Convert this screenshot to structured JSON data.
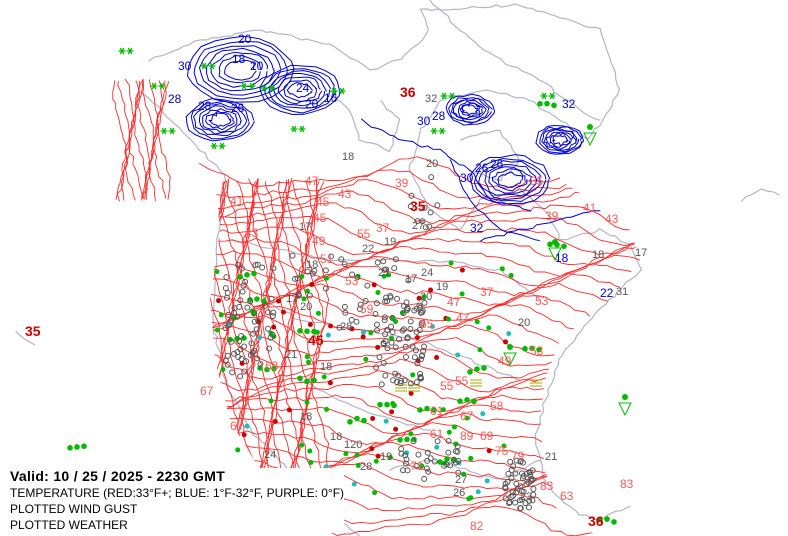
{
  "legend": {
    "valid": "Valid: 10 / 25 / 2025  -  2230 GMT",
    "temperature": "TEMPERATURE (RED:33°F+; BLUE: 1°F-32°F, PURPLE: 0°F)",
    "wind_gust": "PLOTTED WIND GUST",
    "weather": "PLOTTED WEATHER"
  },
  "colors": {
    "warm_contour": "#ff2a2a",
    "warm_label": "#ff5a5a",
    "cold_contour": "#0000cc",
    "freezing": "#9900cc",
    "coastline": "#b4b4c8",
    "station": "#555555",
    "rain": "#00bb00",
    "snow": "#00bb00",
    "gust": "#cc0000",
    "fog": "#aaaa00",
    "drizzle": "#22bbbb"
  },
  "warm_labels": [
    "41",
    "43",
    "45",
    "47",
    "49",
    "51",
    "53",
    "55",
    "59",
    "61",
    "63",
    "67",
    "69",
    "75",
    "79",
    "83",
    "83",
    "37",
    "39",
    "39",
    "41",
    "43",
    "47",
    "49",
    "53",
    "55",
    "58",
    "67",
    "65",
    "61",
    "47",
    "37",
    "35",
    "43",
    "45",
    "53",
    "55",
    "63",
    "67",
    "71",
    "89",
    "82"
  ],
  "cold_labels": [
    "20",
    "20",
    "18",
    "30",
    "28",
    "26",
    "24",
    "20",
    "16",
    "30",
    "28",
    "26",
    "32",
    "32",
    "30",
    "26",
    "28",
    "18",
    "22"
  ],
  "station_values": [
    "18",
    "32",
    "20",
    "27",
    "19",
    "17",
    "18",
    "20",
    "21",
    "18",
    "17",
    "24",
    "18",
    "27",
    "22",
    "26",
    "20",
    "17",
    "18",
    "24",
    "19",
    "21",
    "23",
    "28",
    "28",
    "20",
    "19",
    "31",
    "120",
    "18",
    "21",
    "17"
  ],
  "gust_values": [
    "36",
    "35",
    "35",
    "36",
    "45"
  ],
  "weather_icons": [
    "rain-dots-icon",
    "snow-asterisk-icon",
    "shower-triangle-icon",
    "haze-infinity-icon",
    "fog-lines-icon"
  ]
}
